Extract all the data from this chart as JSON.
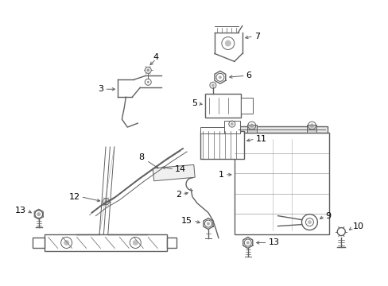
{
  "background_color": "#ffffff",
  "line_color": "#606060",
  "label_color": "#000000",
  "fig_width": 4.89,
  "fig_height": 3.6,
  "dpi": 100
}
